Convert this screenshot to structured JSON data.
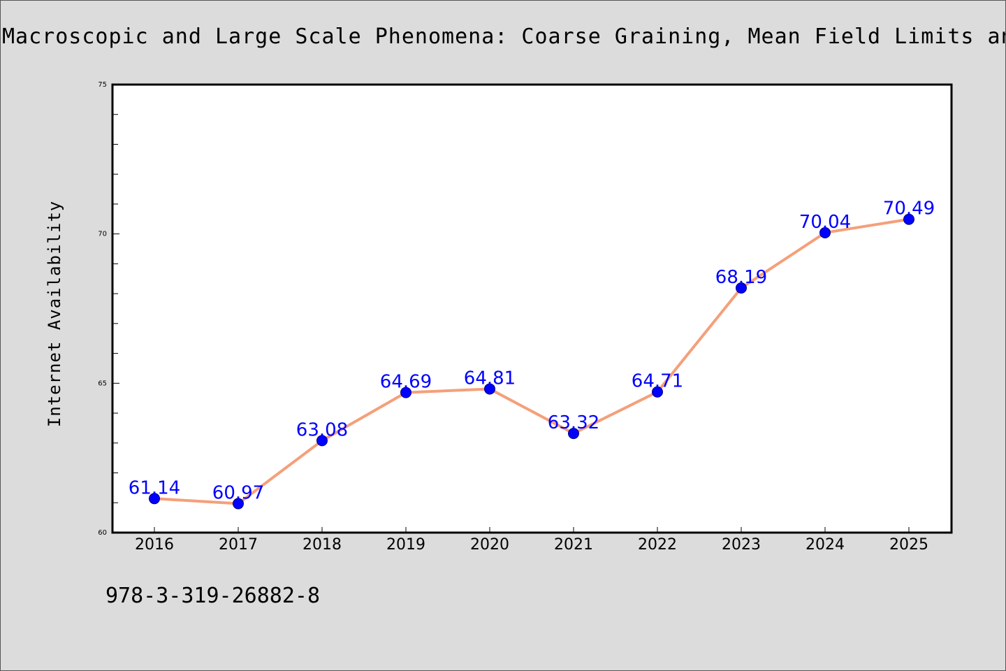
{
  "title": "Macroscopic and Large Scale Phenomena: Coarse Graining, Mean Field Limits and Ergodicity",
  "footer_text": "978-3-319-26882-8",
  "chart_data": {
    "type": "line",
    "categories": [
      "2016",
      "2017",
      "2018",
      "2019",
      "2020",
      "2021",
      "2022",
      "2023",
      "2024",
      "2025"
    ],
    "values": [
      61.14,
      60.97,
      63.08,
      64.69,
      64.81,
      63.32,
      64.71,
      68.19,
      70.04,
      70.49
    ],
    "data_labels": [
      "61.14",
      "60.97",
      "63.08",
      "64.69",
      "64.81",
      "63.32",
      "64.71",
      "68.19",
      "70.04",
      "70.49"
    ],
    "xlabel": "",
    "ylabel": "Internet Availability",
    "ylim": [
      60,
      75
    ],
    "yticks": [
      "60",
      "65",
      "70",
      "75"
    ],
    "grid": false,
    "colors": {
      "line": "#f4a07a",
      "marker": "#0000ff",
      "marker_edge": "#000080",
      "data_label": "#0000ff",
      "plot_bg": "#ffffff",
      "page_bg": "#dcdcdc"
    }
  }
}
